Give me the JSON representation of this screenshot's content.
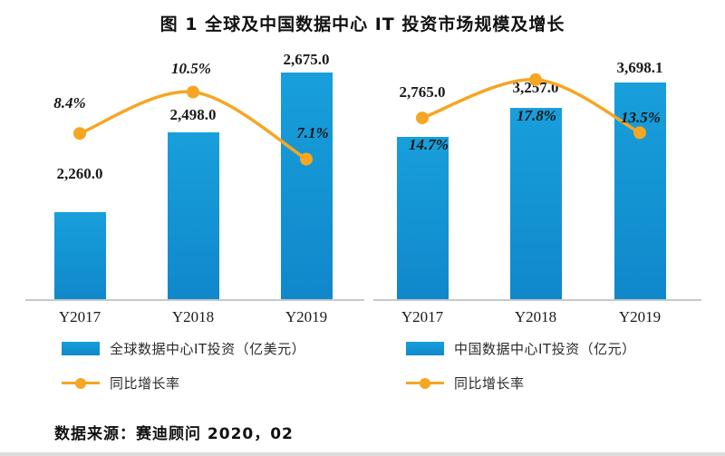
{
  "title": "图 1  全球及中国数据中心 IT 投资市场规模及增长",
  "source": "数据来源：赛迪顾问  2020，02",
  "colors": {
    "bar": "#1088CB",
    "bar_top": "#189FDB",
    "line": "#F6A623",
    "axis": "#C8C8C8",
    "text": "#1A1A1A"
  },
  "chart_data": [
    {
      "type": "bar",
      "name": "global",
      "categories": [
        "Y2017",
        "Y2018",
        "Y2019"
      ],
      "series": [
        {
          "name": "全球数据中心IT投资（亿美元）",
          "type": "bar",
          "values": [
            2260.0,
            2498.0,
            2675.0
          ],
          "labels": [
            "2,260.0",
            "2,498.0",
            "2,675.0"
          ]
        },
        {
          "name": "同比增长率",
          "type": "line",
          "values": [
            8.4,
            10.5,
            7.1
          ],
          "labels": [
            "8.4%",
            "10.5%",
            "7.1%"
          ]
        }
      ],
      "ylim_bars": [
        2000,
        2735
      ],
      "ylim_line_percent": [
        0,
        12.5
      ],
      "grid": false,
      "legend_position": "bottom-left"
    },
    {
      "type": "bar",
      "name": "china",
      "categories": [
        "Y2017",
        "Y2018",
        "Y2019"
      ],
      "series": [
        {
          "name": "中国数据中心IT投资（亿元）",
          "type": "bar",
          "values": [
            2765.0,
            3257.0,
            3698.1
          ],
          "labels": [
            "2,765.0",
            "3,257.0",
            "3,698.1"
          ]
        },
        {
          "name": "同比增长率",
          "type": "line",
          "values": [
            14.7,
            17.8,
            13.5
          ],
          "labels": [
            "14.7%",
            "17.8%",
            "13.5%"
          ]
        }
      ],
      "ylim_bars": [
        0,
        4200
      ],
      "ylim_line_percent": [
        0,
        20
      ],
      "grid": false,
      "legend_position": "bottom-left"
    }
  ]
}
